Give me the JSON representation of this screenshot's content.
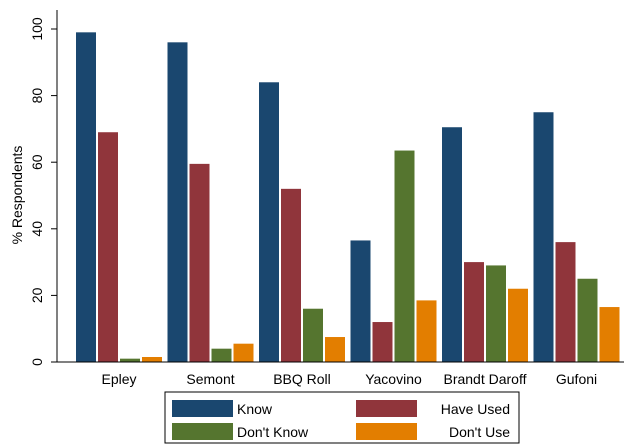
{
  "chart_data": {
    "type": "bar",
    "title": "",
    "xlabel": "",
    "ylabel": "% Respondents",
    "ylim": [
      0,
      100
    ],
    "yticks": [
      0,
      20,
      40,
      60,
      80,
      100
    ],
    "ytick_labels": [
      "0",
      "20",
      "40",
      "60",
      "80",
      "100"
    ],
    "grid": false,
    "legend_position": "bottom",
    "categories": [
      "Epley",
      "Semont",
      "BBQ Roll",
      "Yacovino",
      "Brandt Daroff",
      "Gufoni"
    ],
    "series": [
      {
        "name": "Know",
        "color": "#1a476f",
        "values": [
          99,
          96,
          84,
          36.5,
          70.5,
          75
        ]
      },
      {
        "name": "Have Used",
        "color": "#90353b",
        "values": [
          69,
          59.5,
          52,
          12,
          30,
          36
        ]
      },
      {
        "name": "Don't Know",
        "color": "#55752f",
        "values": [
          1,
          4,
          16,
          63.5,
          29,
          25
        ]
      },
      {
        "name": "Don't Use",
        "color": "#e37e00",
        "values": [
          1.5,
          5.5,
          7.5,
          18.5,
          22,
          16.5
        ]
      }
    ]
  }
}
